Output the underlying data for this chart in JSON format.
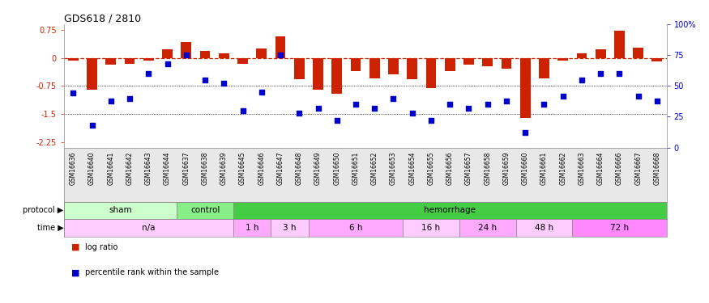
{
  "title": "GDS618 / 2810",
  "samples": [
    "GSM16636",
    "GSM16640",
    "GSM16641",
    "GSM16642",
    "GSM16643",
    "GSM16644",
    "GSM16637",
    "GSM16638",
    "GSM16639",
    "GSM16645",
    "GSM16646",
    "GSM16647",
    "GSM16648",
    "GSM16649",
    "GSM16650",
    "GSM16651",
    "GSM16652",
    "GSM16653",
    "GSM16654",
    "GSM16655",
    "GSM16656",
    "GSM16657",
    "GSM16658",
    "GSM16659",
    "GSM16660",
    "GSM16661",
    "GSM16662",
    "GSM16663",
    "GSM16664",
    "GSM16666",
    "GSM16667",
    "GSM16668"
  ],
  "log_ratio": [
    -0.08,
    -0.85,
    -0.18,
    -0.15,
    -0.07,
    0.22,
    0.42,
    0.18,
    0.12,
    -0.15,
    0.25,
    0.57,
    -0.58,
    -0.85,
    -0.95,
    -0.35,
    -0.55,
    -0.45,
    -0.58,
    -0.8,
    -0.35,
    -0.18,
    -0.22,
    -0.28,
    -1.6,
    -0.55,
    -0.08,
    0.12,
    0.22,
    0.72,
    0.28,
    -0.1
  ],
  "pct_rank": [
    44,
    18,
    38,
    40,
    60,
    68,
    75,
    55,
    52,
    30,
    45,
    75,
    28,
    32,
    22,
    35,
    32,
    40,
    28,
    22,
    35,
    32,
    35,
    38,
    12,
    35,
    42,
    55,
    60,
    60,
    42,
    38
  ],
  "ylim": [
    -2.4,
    0.9
  ],
  "yticks": [
    0.75,
    0.0,
    -0.75,
    -1.5,
    -2.25
  ],
  "ytick_labels": [
    "0.75",
    "0",
    "-0.75",
    "-1.5",
    "-2.25"
  ],
  "y2ticks": [
    100,
    75,
    50,
    25,
    0
  ],
  "y2tick_labels": [
    "100%",
    "75",
    "50",
    "25",
    "0"
  ],
  "hline_y": [
    0.0,
    -0.75,
    -1.5
  ],
  "bar_color": "#cc2200",
  "dot_color": "#0000cc",
  "dashed_color": "#cc2200",
  "protocol_groups": [
    {
      "label": "sham",
      "start": 0,
      "end": 6,
      "color": "#ccffcc"
    },
    {
      "label": "control",
      "start": 6,
      "end": 9,
      "color": "#88ee88"
    },
    {
      "label": "hemorrhage",
      "start": 9,
      "end": 32,
      "color": "#44cc44"
    }
  ],
  "time_groups": [
    {
      "label": "n/a",
      "start": 0,
      "end": 9,
      "color": "#ffccff"
    },
    {
      "label": "1 h",
      "start": 9,
      "end": 11,
      "color": "#ffaaff"
    },
    {
      "label": "3 h",
      "start": 11,
      "end": 13,
      "color": "#ffccff"
    },
    {
      "label": "6 h",
      "start": 13,
      "end": 18,
      "color": "#ffaaff"
    },
    {
      "label": "16 h",
      "start": 18,
      "end": 21,
      "color": "#ffccff"
    },
    {
      "label": "24 h",
      "start": 21,
      "end": 24,
      "color": "#ffaaff"
    },
    {
      "label": "48 h",
      "start": 24,
      "end": 27,
      "color": "#ffccff"
    },
    {
      "label": "72 h",
      "start": 27,
      "end": 32,
      "color": "#ff88ff"
    }
  ],
  "bg_color": "#ffffff",
  "axis_color": "#888888",
  "label_color_left": "#cc2200",
  "label_color_right": "#0000cc"
}
